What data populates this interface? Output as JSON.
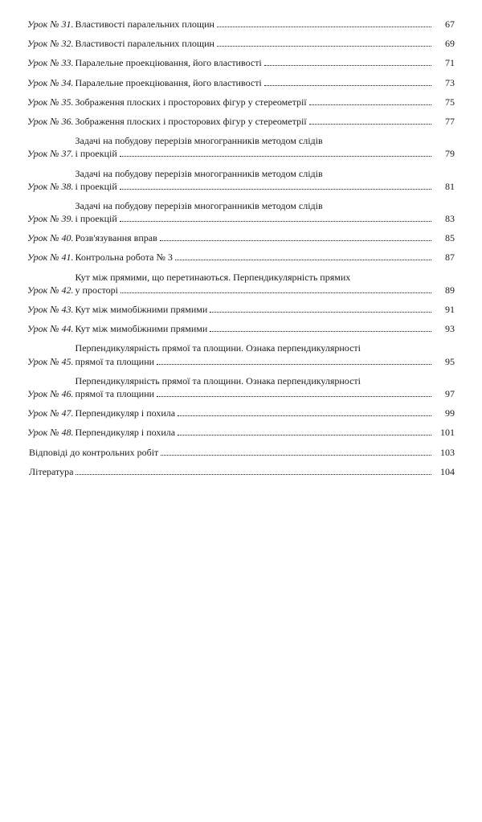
{
  "toc": {
    "prefix_word": "Урок №",
    "entries": [
      {
        "num": "31",
        "lines": [
          "Властивості паралельних площин"
        ],
        "page": "67"
      },
      {
        "num": "32",
        "lines": [
          "Властивості паралельних площин"
        ],
        "page": "69"
      },
      {
        "num": "33",
        "lines": [
          "Паралельне проекціювання, його властивості"
        ],
        "page": "71"
      },
      {
        "num": "34",
        "lines": [
          "Паралельне проекціювання, його властивості"
        ],
        "page": "73"
      },
      {
        "num": "35",
        "lines": [
          "Зображення плоских і просторових фігур у стереометрії"
        ],
        "page": "75"
      },
      {
        "num": "36",
        "lines": [
          "Зображення плоских і просторових фігур у стереометрії"
        ],
        "page": "77"
      },
      {
        "num": "37",
        "lines": [
          "Задачі на побудову перерізів многогранників методом слідів",
          "і проекцій"
        ],
        "page": "79"
      },
      {
        "num": "38",
        "lines": [
          "Задачі на побудову перерізів многогранників методом слідів",
          "і проекцій"
        ],
        "page": "81"
      },
      {
        "num": "39",
        "lines": [
          "Задачі на побудову перерізів многогранників методом слідів",
          "і проекцій"
        ],
        "page": "83"
      },
      {
        "num": "40",
        "lines": [
          "Розв'язування вправ"
        ],
        "page": "85"
      },
      {
        "num": "41",
        "lines": [
          "Контрольна робота № 3"
        ],
        "page": "87"
      },
      {
        "num": "42",
        "lines": [
          "Кут між прямими, що перетинаються. Перпендикулярність прямих",
          "у просторі"
        ],
        "page": "89"
      },
      {
        "num": "43",
        "lines": [
          "Кут між мимобіжними прямими"
        ],
        "page": "91"
      },
      {
        "num": "44",
        "lines": [
          "Кут між мимобіжними прямими"
        ],
        "page": "93"
      },
      {
        "num": "45",
        "lines": [
          "Перпендикулярність прямої та площини. Ознака перпендикулярності",
          "прямої та площини"
        ],
        "page": "95"
      },
      {
        "num": "46",
        "lines": [
          "Перпендикулярність прямої та площини. Ознака перпендикулярності",
          "прямої та площини"
        ],
        "page": "97"
      },
      {
        "num": "47",
        "lines": [
          "Перпендикуляр і похила"
        ],
        "page": "99"
      },
      {
        "num": "48",
        "lines": [
          "Перпендикуляр і похила"
        ],
        "page": "101"
      }
    ],
    "trailing": [
      {
        "text": "Відповіді до контрольних робіт",
        "page": "103"
      },
      {
        "text": "Література",
        "page": "104"
      }
    ]
  }
}
